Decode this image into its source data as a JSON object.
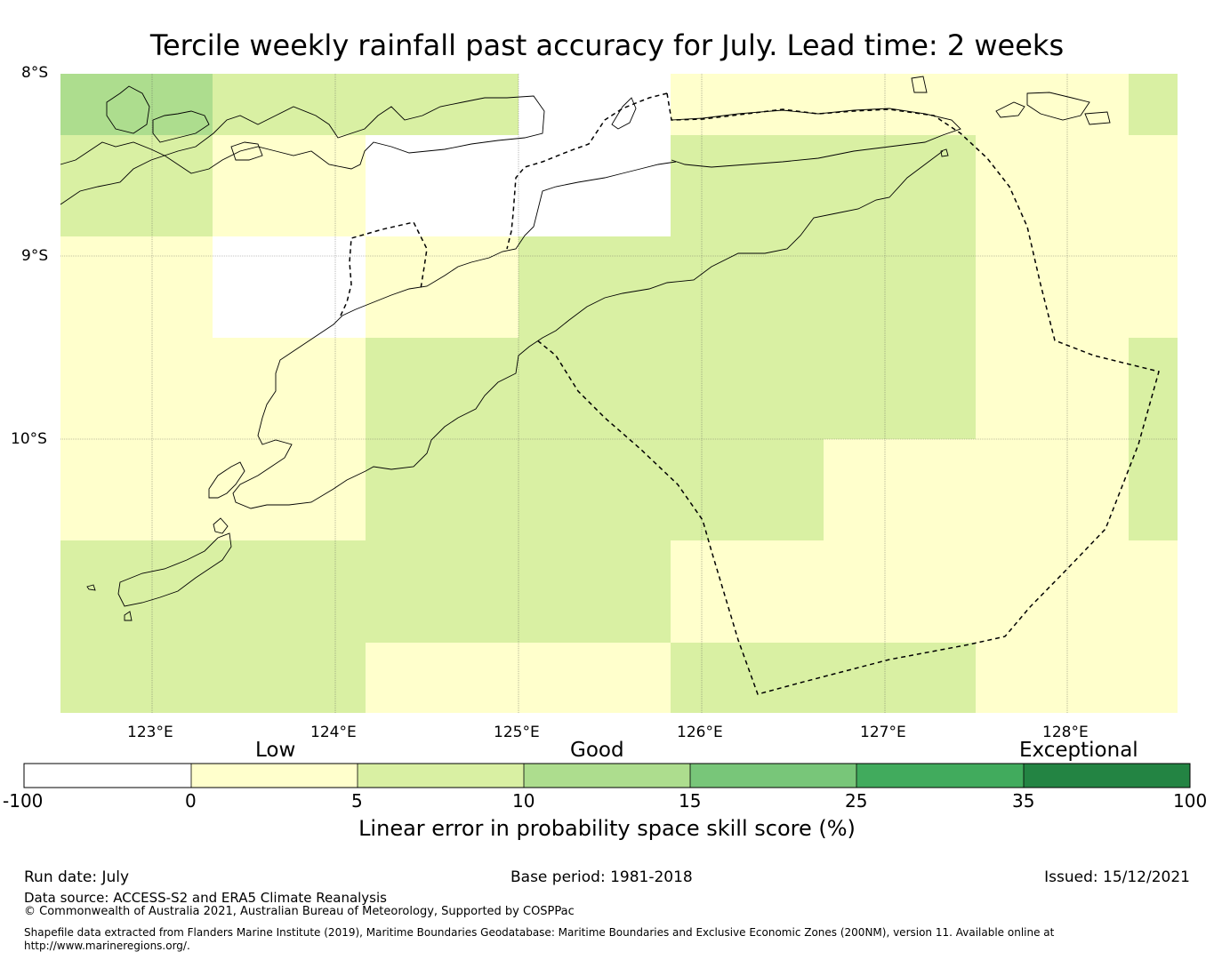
{
  "title": "Tercile weekly rainfall past accuracy for July. Lead time: 2 weeks",
  "map": {
    "lat_labels": [
      "8°S",
      "9°S",
      "10°S"
    ],
    "lon_labels": [
      "123°E",
      "124°E",
      "125°E",
      "126°E",
      "127°E",
      "128°E"
    ],
    "lon_range": [
      122.5,
      128.6
    ],
    "lat_range": [
      -11.5,
      -8.0
    ],
    "skill_colors": {
      "negative": "#ffffff",
      "0-5": "#ffffcc",
      "5-10": "#d9f0a3",
      "10-15": "#addd8e",
      "15-25": "#78c679",
      "25-35": "#41ab5d",
      "35-100": "#238443"
    }
  },
  "colorbar": {
    "categories": [
      {
        "label": "Low"
      },
      {
        "label": "Good"
      },
      {
        "label": "Exceptional"
      }
    ],
    "ticks": [
      "-100",
      "0",
      "5",
      "10",
      "15",
      "25",
      "35",
      "100"
    ],
    "colors": [
      "#ffffff",
      "#ffffcc",
      "#d9f0a3",
      "#addd8e",
      "#78c679",
      "#41ab5d",
      "#238443"
    ],
    "title": "Linear error in probability space skill score (%)"
  },
  "footer": {
    "run_date": "Run date: July",
    "base_period": "Base period: 1981-2018",
    "issued": "Issued: 15/12/2021",
    "data_source": "Data source: ACCESS-S2 and ERA5 Climate Reanalysis",
    "copyright": "© Commonwealth of Australia 2021, Australian Bureau of Meteorology, Supported by COSPPac",
    "shapefile_line1": "Shapefile data extracted from Flanders Marine Institute (2019), Maritime Boundaries Geodatabase: Maritime Boundaries and Exclusive Economic Zones (200NM), version 11. Available online at",
    "shapefile_line2": "http://www.marineregions.org/."
  }
}
